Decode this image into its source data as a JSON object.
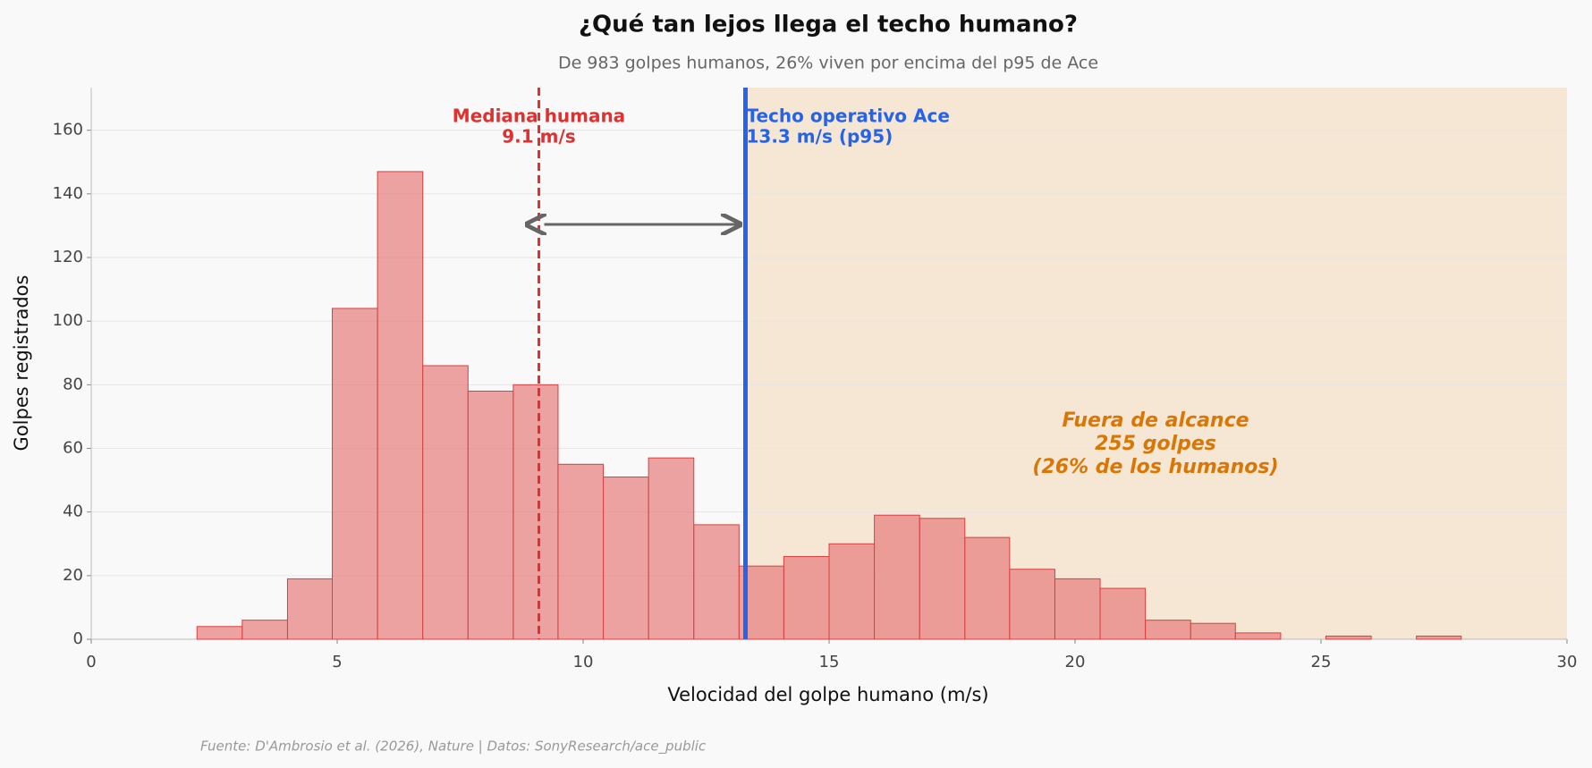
{
  "chart_data": {
    "type": "histogram",
    "title": "¿Qué tan lejos llega el techo humano?",
    "subtitle": "De 983 golpes humanos, 26% viven por encima del p95 de Ace",
    "xlabel": "Velocidad del golpe humano (m/s)",
    "ylabel": "Golpes registrados",
    "source": "Fuente: D'Ambrosio et al. (2026), Nature | Datos: SonyResearch/ace_public",
    "bins": [
      2.15,
      3.07,
      3.99,
      4.9,
      5.82,
      6.74,
      7.66,
      8.58,
      9.49,
      10.41,
      11.33,
      12.25,
      13.17,
      14.08,
      15.0,
      15.92,
      16.84,
      17.76,
      18.67,
      19.59,
      20.51,
      21.43,
      22.35,
      23.26,
      24.18,
      25.1,
      26.02,
      26.94,
      27.85
    ],
    "values": [
      4,
      6,
      19,
      104,
      147,
      86,
      78,
      80,
      55,
      51,
      57,
      36,
      23,
      26,
      30,
      39,
      38,
      32,
      22,
      19,
      16,
      6,
      5,
      2,
      0,
      1,
      0,
      1
    ],
    "color": "#e88080",
    "edge_color": "#d94040",
    "xlim": [
      0,
      30
    ],
    "ylim": [
      0,
      173.4
    ],
    "xticks": [
      0,
      5,
      10,
      15,
      20,
      25,
      30
    ],
    "yticks": [
      0,
      20,
      40,
      60,
      80,
      100,
      120,
      140,
      160
    ],
    "grid": true,
    "lines": [
      {
        "value": 9.1,
        "label": [
          "Mediana humana",
          "9.1 m/s"
        ],
        "color": "#e03030",
        "style": "dashed"
      },
      {
        "value": 13.3,
        "label": [
          "Techo operativo Ace",
          "13.3 m/s (p95)"
        ],
        "color": "#2563eb",
        "style": "solid"
      }
    ],
    "region": {
      "from": 13.3,
      "to": 30,
      "color": "#f5dcc0",
      "label": [
        "Fuera de alcance",
        "255 golpes",
        "(26% de los humanos)"
      ],
      "label_color": "#d97706"
    }
  }
}
